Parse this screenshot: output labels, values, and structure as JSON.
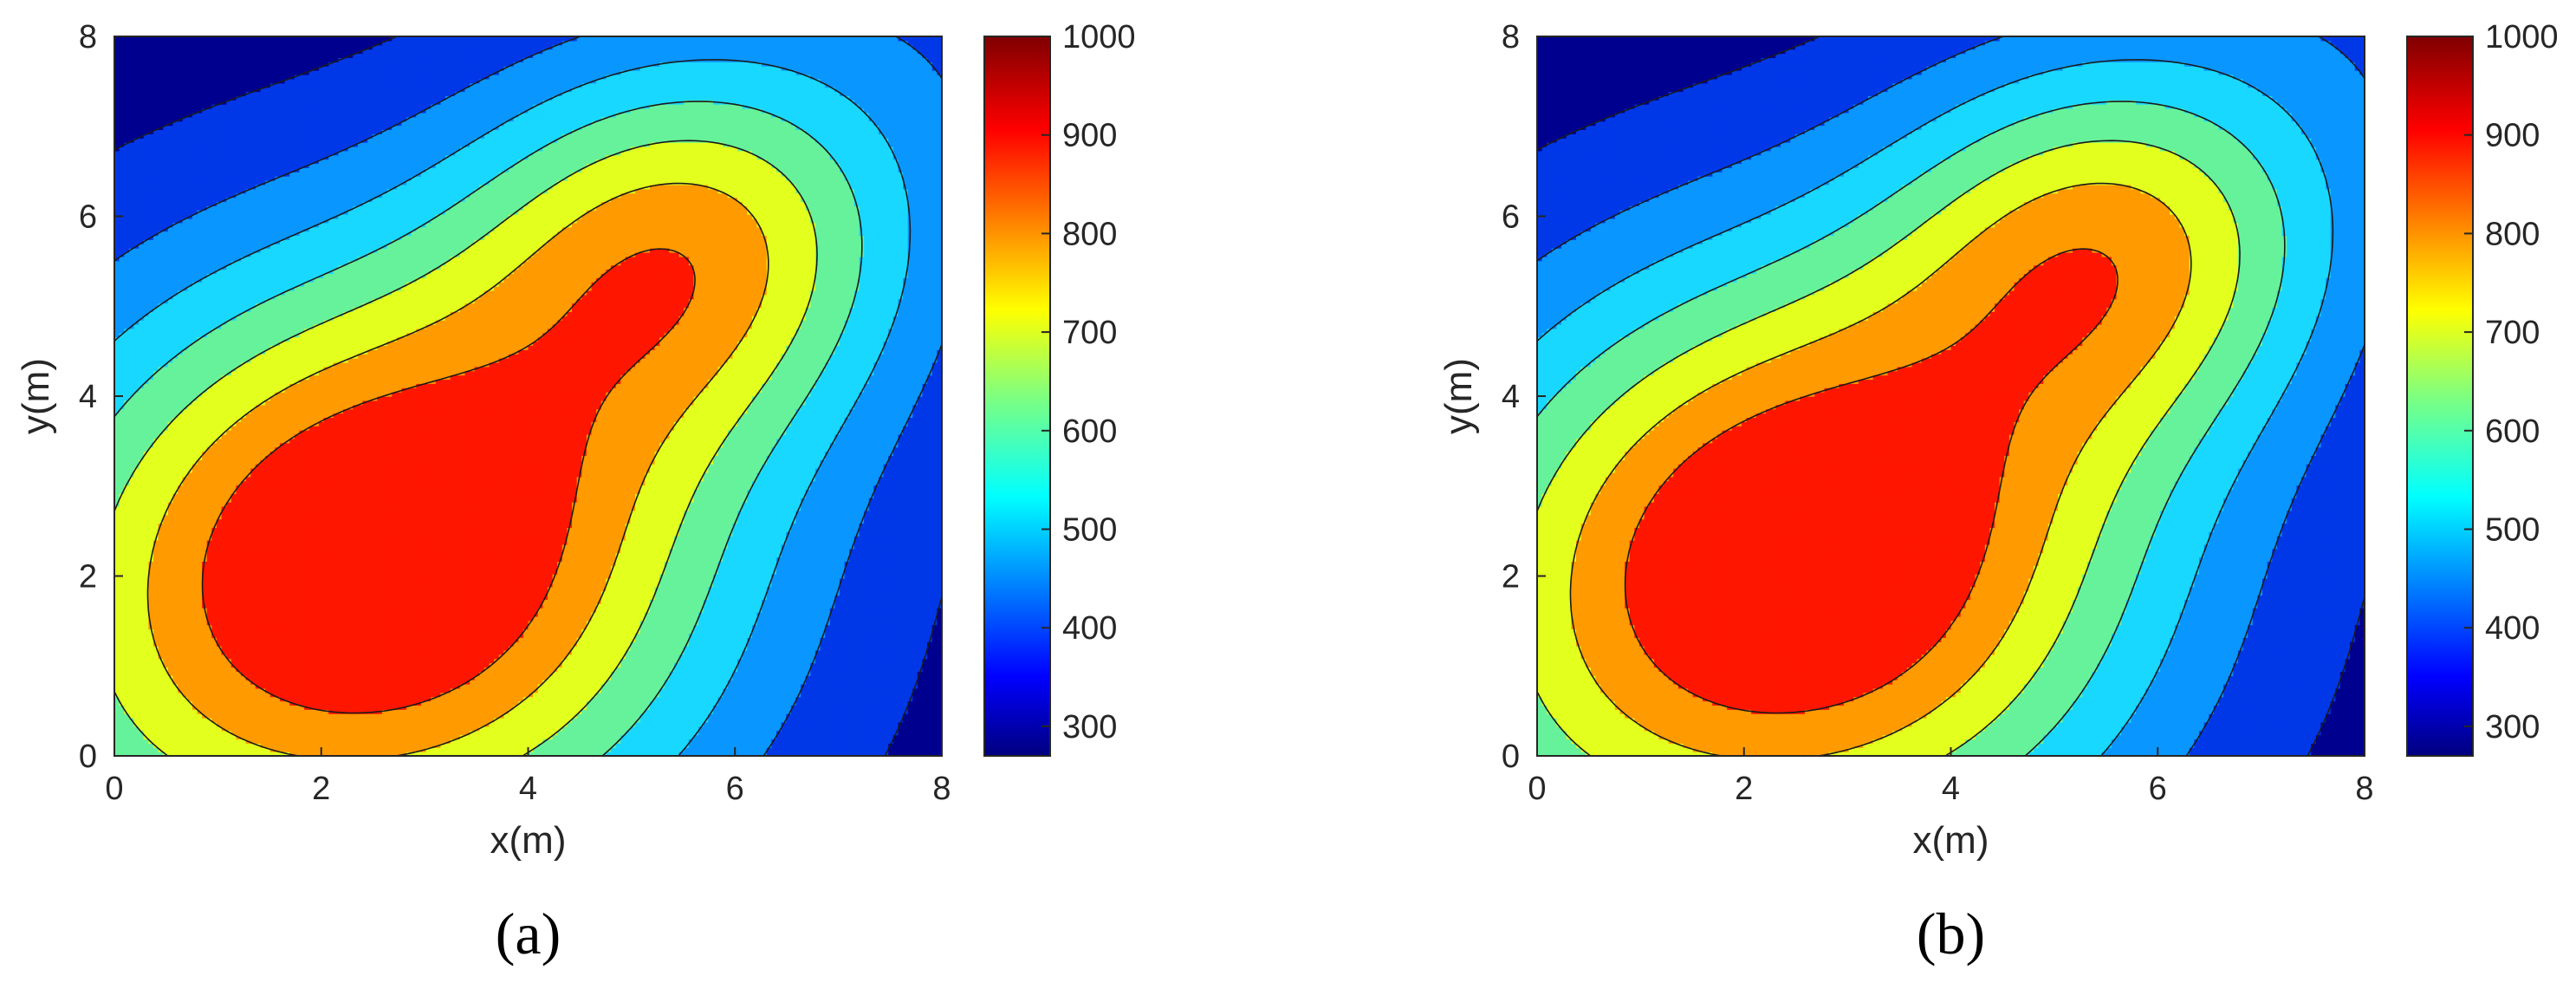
{
  "chart_data": [
    {
      "type": "contour",
      "caption": "(a)",
      "xlabel": "x(m)",
      "ylabel": "y(m)",
      "xlim": [
        0,
        8
      ],
      "ylim": [
        0,
        8
      ],
      "xticks": [
        "0",
        "2",
        "4",
        "6",
        "8"
      ],
      "yticks": [
        "0",
        "2",
        "4",
        "6",
        "8"
      ],
      "colorbar": {
        "range": [
          270,
          1000
        ],
        "ticks": [
          "300",
          "400",
          "500",
          "600",
          "700",
          "800",
          "900",
          "1000"
        ]
      },
      "levels": [
        300,
        400,
        500,
        600,
        700,
        800,
        900,
        1000
      ],
      "level_colors": [
        "#00008f",
        "#0038e8",
        "#0a96ff",
        "#19d8ff",
        "#66f29a",
        "#e2ff1e",
        "#ff9a00",
        "#ff1600",
        "#8b0000"
      ],
      "peaks": [
        {
          "x": 2.6,
          "y": 2.1,
          "value": 1000
        },
        {
          "x": 5.5,
          "y": 5.7,
          "value": 920
        }
      ],
      "grid": false
    },
    {
      "type": "contour",
      "caption": "(b)",
      "xlabel": "x(m)",
      "ylabel": "y(m)",
      "xlim": [
        0,
        8
      ],
      "ylim": [
        0,
        8
      ],
      "xticks": [
        "0",
        "2",
        "4",
        "6",
        "8"
      ],
      "yticks": [
        "0",
        "2",
        "4",
        "6",
        "8"
      ],
      "colorbar": {
        "range": [
          270,
          1000
        ],
        "ticks": [
          "300",
          "400",
          "500",
          "600",
          "700",
          "800",
          "900",
          "1000"
        ]
      },
      "levels": [
        300,
        400,
        500,
        600,
        700,
        800,
        900,
        1000
      ],
      "level_colors": [
        "#00008f",
        "#0038e8",
        "#0a96ff",
        "#19d8ff",
        "#66f29a",
        "#e2ff1e",
        "#ff9a00",
        "#ff1600",
        "#8b0000"
      ],
      "peaks": [
        {
          "x": 2.6,
          "y": 2.1,
          "value": 1000
        },
        {
          "x": 5.5,
          "y": 5.7,
          "value": 920
        }
      ],
      "grid": false
    }
  ]
}
